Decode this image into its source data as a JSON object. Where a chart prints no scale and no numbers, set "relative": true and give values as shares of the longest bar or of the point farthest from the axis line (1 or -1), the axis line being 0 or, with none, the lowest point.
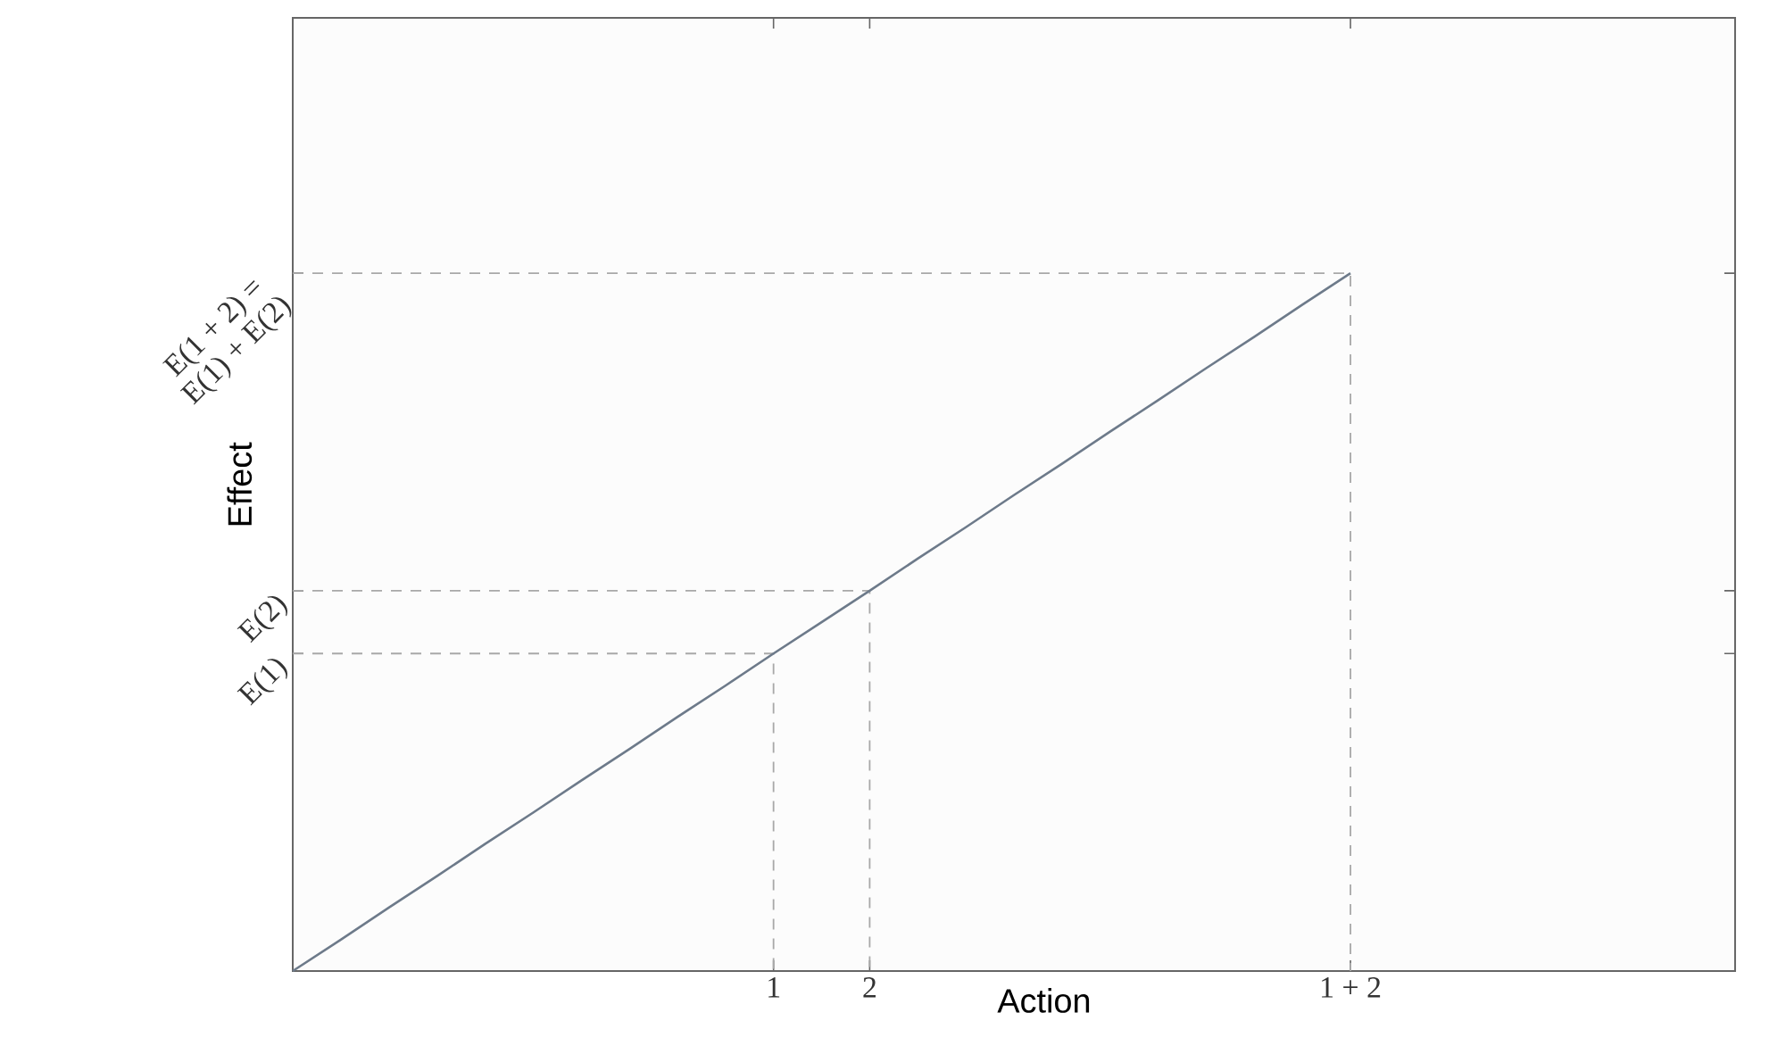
{
  "chart_data": {
    "type": "line",
    "xlabel": "Action",
    "ylabel": "Effect",
    "relative": true,
    "categories": [
      null,
      null,
      null,
      null,
      null,
      null,
      null,
      null,
      null,
      null,
      "1",
      null,
      "2",
      null,
      null,
      null,
      null,
      null,
      null,
      null,
      null,
      null,
      "1 + 2",
      null,
      null,
      null,
      null,
      null,
      null,
      null,
      null
    ],
    "series": [
      {
        "color": "#6d7a8a",
        "values": [
          0,
          0.045,
          0.091,
          0.136,
          0.182,
          0.227,
          0.273,
          0.318,
          0.364,
          0.409,
          0.455,
          0.5,
          0.545,
          0.591,
          0.636,
          0.682,
          0.727,
          0.773,
          0.818,
          0.864,
          0.909,
          0.955,
          1,
          null,
          null,
          null,
          null,
          null,
          null,
          null,
          null
        ]
      }
    ],
    "ref_lines": [
      {
        "axis": "y",
        "value": 0.455,
        "label": "E(1)",
        "color": "#a8a8a8",
        "line_style": "dashed"
      },
      {
        "axis": "y",
        "value": 0.545,
        "label": "E(2)",
        "color": "#a8a8a8",
        "line_style": "dashed"
      },
      {
        "axis": "y",
        "value": 1,
        "label": "E(1 + 2) = E(1) + E(2)",
        "color": "#a8a8a8",
        "line_style": "dashed"
      }
    ]
  }
}
